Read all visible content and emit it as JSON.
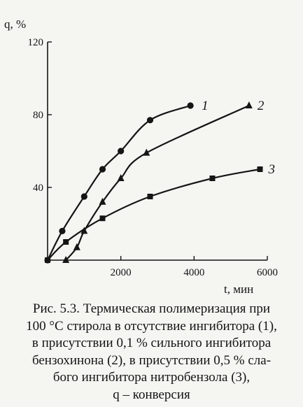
{
  "chart_data": {
    "type": "line",
    "xlabel": "t, мин",
    "ylabel": "q, %",
    "xlim": [
      0,
      6000
    ],
    "ylim": [
      0,
      120
    ],
    "x_ticks": [
      2000,
      4000,
      6000
    ],
    "y_ticks": [
      40,
      80,
      120
    ],
    "origin_label": "",
    "grid": false,
    "series": [
      {
        "name": "1",
        "marker": "circle",
        "x": [
          0,
          400,
          1000,
          1500,
          2000,
          2800,
          3900
        ],
        "y": [
          0,
          16,
          35,
          50,
          60,
          77,
          85
        ]
      },
      {
        "name": "2",
        "marker": "triangle",
        "x": [
          500,
          800,
          1000,
          1500,
          2000,
          2700,
          5500
        ],
        "y": [
          0,
          7,
          16,
          32,
          45,
          59,
          85
        ]
      },
      {
        "name": "3",
        "marker": "square",
        "x": [
          0,
          500,
          1500,
          2800,
          4500,
          5800
        ],
        "y": [
          0,
          10,
          23,
          35,
          45,
          50
        ]
      }
    ]
  },
  "caption": {
    "lines": [
      "Рис. 5.3. Термическая полимеризация при",
      "100 °С стирола в отсутствие ингибитора (1),",
      "в присутствии 0,1 % сильного ингибитора",
      "бензохинона (2), в присутствии 0,5 % сла-",
      "бого ингибитора нитробензола (3),",
      "q – конверсия"
    ]
  }
}
